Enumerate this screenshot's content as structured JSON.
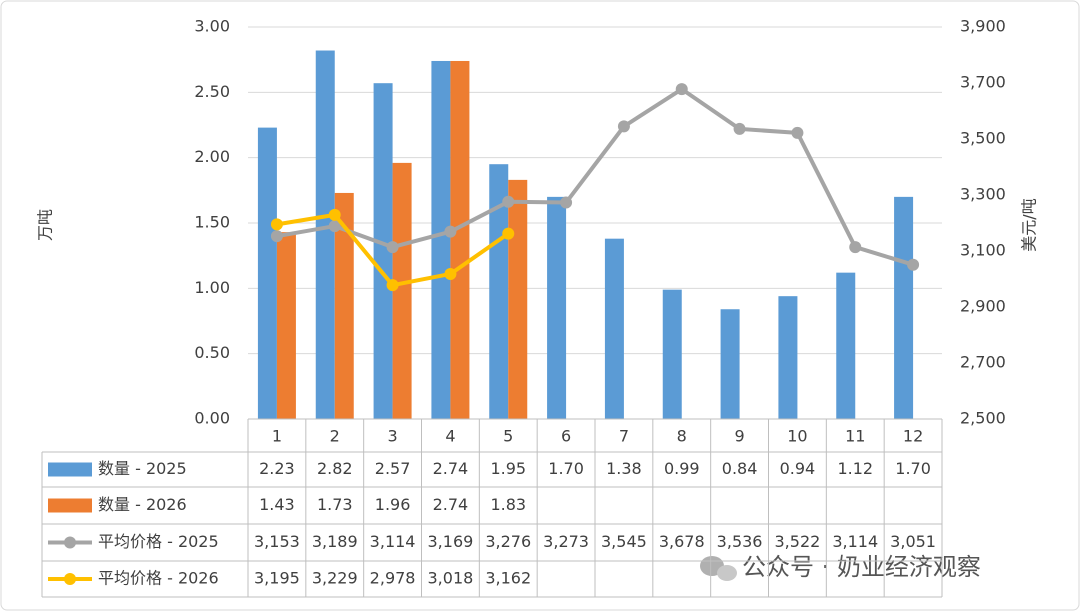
{
  "chart_data": {
    "type": "bar_line_table",
    "y_label": "万吨",
    "y2_label": "美元/吨",
    "categories": [
      "1",
      "2",
      "3",
      "4",
      "5",
      "6",
      "7",
      "8",
      "9",
      "10",
      "11",
      "12"
    ],
    "ylim": [
      0,
      3
    ],
    "yticks": [
      {
        "value": 0,
        "label": "0.00"
      },
      {
        "value": 0.5,
        "label": "0.50"
      },
      {
        "value": 1,
        "label": "1.00"
      },
      {
        "value": 1.5,
        "label": "1.50"
      },
      {
        "value": 2,
        "label": "2.00"
      },
      {
        "value": 2.5,
        "label": "2.50"
      },
      {
        "value": 3,
        "label": "3.00"
      }
    ],
    "y2lim": [
      2500,
      3900
    ],
    "y2ticks": [
      {
        "value": 2500,
        "label": "2,500"
      },
      {
        "value": 2700,
        "label": "2,700"
      },
      {
        "value": 2900,
        "label": "2,900"
      },
      {
        "value": 3100,
        "label": "3,100"
      },
      {
        "value": 3300,
        "label": "3,300"
      },
      {
        "value": 3500,
        "label": "3,500"
      },
      {
        "value": 3700,
        "label": "3,700"
      },
      {
        "value": 3900,
        "label": "3,900"
      }
    ],
    "grid": true,
    "series": [
      {
        "name": "数量 - 2025",
        "kind": "bar",
        "color": "#5b9bd5",
        "values": [
          2.23,
          2.82,
          2.57,
          2.74,
          1.95,
          1.7,
          1.38,
          0.99,
          0.84,
          0.94,
          1.12,
          1.7
        ],
        "value_labels": [
          "2.23",
          "2.82",
          "2.57",
          "2.74",
          "1.95",
          "1.70",
          "1.38",
          "0.99",
          "0.84",
          "0.94",
          "1.12",
          "1.70"
        ]
      },
      {
        "name": "数量 - 2026",
        "kind": "bar",
        "color": "#ed7d31",
        "values": [
          1.43,
          1.73,
          1.96,
          2.74,
          1.83,
          null,
          null,
          null,
          null,
          null,
          null,
          null
        ],
        "value_labels": [
          "1.43",
          "1.73",
          "1.96",
          "2.74",
          "1.83",
          null,
          null,
          null,
          null,
          null,
          null,
          null
        ]
      },
      {
        "name": "平均价格 - 2025",
        "kind": "line",
        "axis": "y2",
        "color": "#a5a5a5",
        "values": [
          3153,
          3189,
          3114,
          3169,
          3276,
          3273,
          3545,
          3678,
          3536,
          3522,
          3114,
          3051
        ],
        "value_labels": [
          "3,153",
          "3,189",
          "3,114",
          "3,169",
          "3,276",
          "3,273",
          "3,545",
          "3,678",
          "3,536",
          "3,522",
          "3,114",
          "3,051"
        ]
      },
      {
        "name": "平均价格 - 2026",
        "kind": "line",
        "axis": "y2",
        "color": "#ffc000",
        "values": [
          3195,
          3229,
          2978,
          3018,
          3162,
          null,
          null,
          null,
          null,
          null,
          null,
          null
        ],
        "value_labels": [
          "3,195",
          "3,229",
          "2,978",
          "3,018",
          "3,162",
          null,
          null,
          null,
          null,
          null,
          null,
          null
        ]
      }
    ],
    "watermark": "公众号 · 奶业经济观察"
  }
}
